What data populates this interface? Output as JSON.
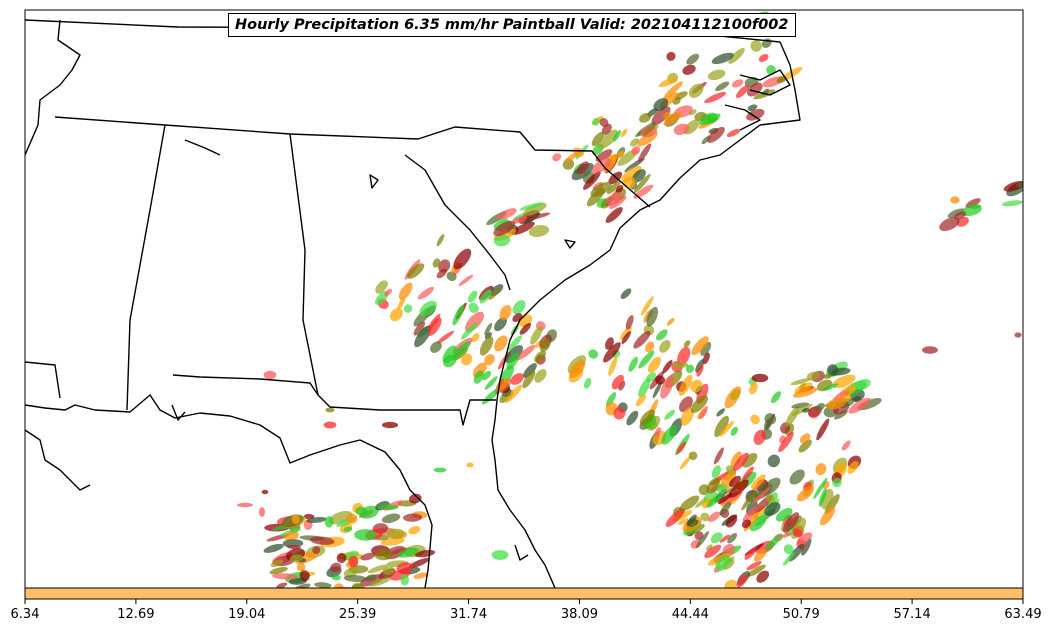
{
  "title": "Hourly Precipitation 6.35 mm/hr Paintball Valid: 202104112100f002",
  "colorbar": {
    "fill_color": "#ffbf66",
    "ticks": [
      "6.34",
      "12.69",
      "19.04",
      "25.39",
      "31.74",
      "38.09",
      "44.44",
      "50.79",
      "57.14",
      "63.49"
    ]
  },
  "member_colors": [
    "#ff8c00",
    "#ffa500",
    "#ff2a2a",
    "#ff5a5a",
    "#8b0000",
    "#a52a2a",
    "#22cc22",
    "#44dd44",
    "#808000",
    "#9aa520",
    "#556b2f",
    "#2f4f2f"
  ]
}
